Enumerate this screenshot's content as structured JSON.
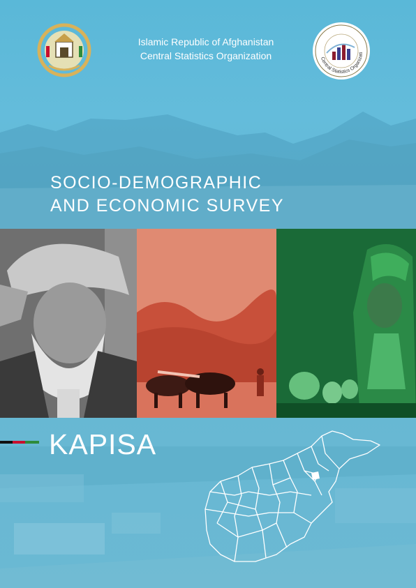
{
  "header": {
    "org_line1": "Islamic Republic of Afghanistan",
    "org_line2": "Central Statistics Organization",
    "emblem_icon": "afghanistan-national-emblem",
    "cso_logo_icon": "cso-circular-seal",
    "cso_logo_text": "Central Statistics Organization"
  },
  "title": {
    "line1": "SOCIO-DEMOGRAPHIC",
    "line2": "AND ECONOMIC SURVEY"
  },
  "photos": [
    {
      "name": "elderly-man-portrait",
      "tint": "#7d7d7d"
    },
    {
      "name": "oxen-plowing-field",
      "tint": "#de7b62"
    },
    {
      "name": "man-with-teapots",
      "tint": "#1f7a3f"
    }
  ],
  "province": {
    "name": "KAPISA",
    "flag_colors": [
      "#111111",
      "#c8102e",
      "#2e8b3a"
    ]
  },
  "colors": {
    "background": "#5bb7d6",
    "text": "#ffffff"
  }
}
